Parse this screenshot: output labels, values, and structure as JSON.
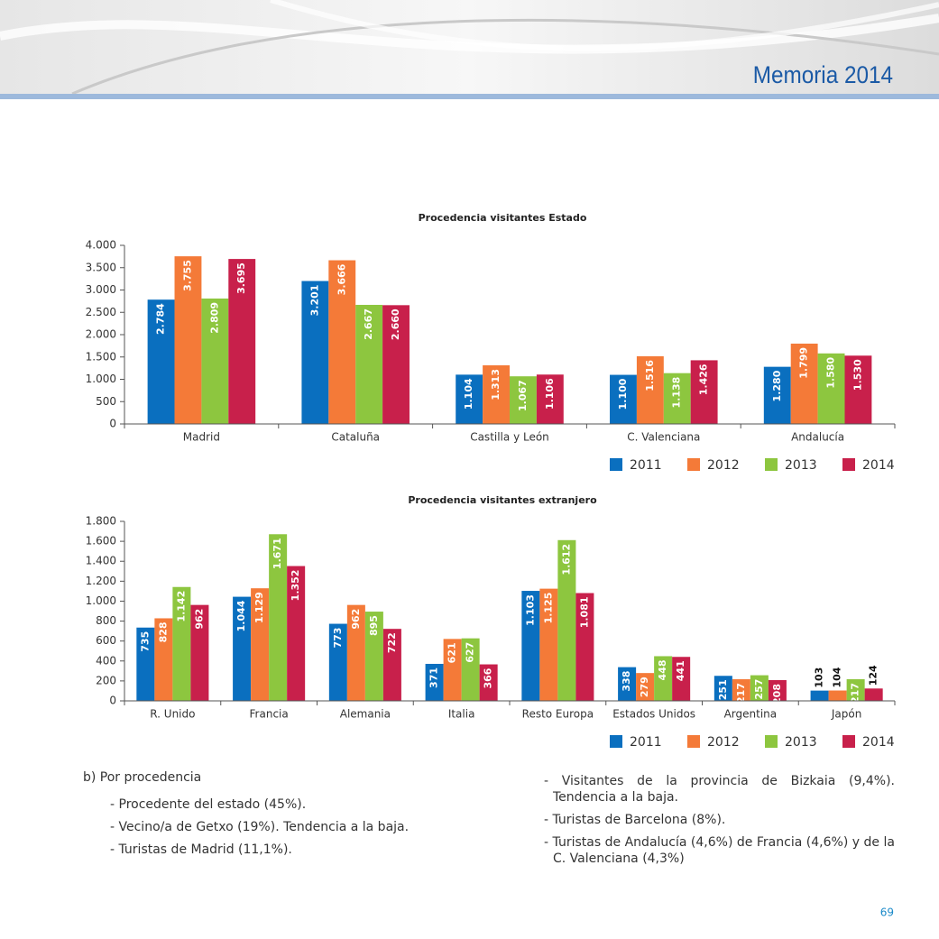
{
  "header": {
    "title": "Memoria 2014"
  },
  "chart_data": [
    {
      "type": "bar",
      "title": "Procedencia visitantes Estado",
      "categories": [
        "Madrid",
        "Cataluña",
        "Castilla y León",
        "C. Valenciana",
        "Andalucía"
      ],
      "series": [
        {
          "name": "2011",
          "color": "#0a6fbf",
          "values": [
            2784,
            3201,
            1104,
            1100,
            1280
          ],
          "value_labels": [
            "2.784",
            "3.201",
            "1.104",
            "1.100",
            "1.280"
          ]
        },
        {
          "name": "2012",
          "color": "#f47a38",
          "values": [
            3755,
            3666,
            1313,
            1516,
            1799
          ],
          "value_labels": [
            "3.755",
            "3.666",
            "1.313",
            "1.516",
            "1.799"
          ]
        },
        {
          "name": "2013",
          "color": "#8dc63f",
          "values": [
            2809,
            2667,
            1067,
            1138,
            1580
          ],
          "value_labels": [
            "2.809",
            "2.667",
            "1.067",
            "1.138",
            "1.580"
          ]
        },
        {
          "name": "2014",
          "color": "#c8204b",
          "values": [
            3695,
            2660,
            1106,
            1426,
            1530
          ],
          "value_labels": [
            "3.695",
            "2.660",
            "1.106",
            "1.426",
            "1.530"
          ]
        }
      ],
      "ylim": [
        0,
        4000
      ],
      "yticks": [
        0,
        500,
        {
          "value": 1000,
          "label": "1.000"
        },
        {
          "value": 1500,
          "label": "1.500"
        },
        {
          "value": 2000,
          "label": "2.000"
        },
        {
          "value": 2500,
          "label": "2.500"
        },
        {
          "value": 3000,
          "label": "3.000"
        },
        {
          "value": 3500,
          "label": "3.500"
        },
        {
          "value": 4000,
          "label": "4.000"
        }
      ],
      "legend": "bottom-right"
    },
    {
      "type": "bar",
      "title": "Procedencia visitantes extranjero",
      "categories": [
        "R. Unido",
        "Francia",
        "Alemania",
        "Italia",
        "Resto Europa",
        "Estados Unidos",
        "Argentina",
        "Japón"
      ],
      "series": [
        {
          "name": "2011",
          "color": "#0a6fbf",
          "values": [
            735,
            1044,
            773,
            371,
            1103,
            338,
            251,
            103
          ],
          "value_labels": [
            "735",
            "1.044",
            "773",
            "371",
            "1.103",
            "338",
            "251",
            "103"
          ]
        },
        {
          "name": "2012",
          "color": "#f47a38",
          "values": [
            828,
            1129,
            962,
            621,
            1125,
            279,
            217,
            104
          ],
          "value_labels": [
            "828",
            "1.129",
            "962",
            "621",
            "1.125",
            "279",
            "217",
            "104"
          ]
        },
        {
          "name": "2013",
          "color": "#8dc63f",
          "values": [
            1142,
            1671,
            895,
            627,
            1612,
            448,
            257,
            217
          ],
          "value_labels": [
            "1.142",
            "1.671",
            "895",
            "627",
            "1.612",
            "448",
            "257",
            "217"
          ]
        },
        {
          "name": "2014",
          "color": "#c8204b",
          "values": [
            962,
            1352,
            722,
            366,
            1081,
            441,
            208,
            124
          ],
          "value_labels": [
            "962",
            "1.352",
            "722",
            "366",
            "1.081",
            "441",
            "208",
            "124"
          ]
        }
      ],
      "ylim": [
        0,
        1800
      ],
      "yticks": [
        0,
        200,
        400,
        600,
        800,
        {
          "value": 1000,
          "label": "1.000"
        },
        {
          "value": 1200,
          "label": "1.200"
        },
        {
          "value": 1400,
          "label": "1.400"
        },
        {
          "value": 1600,
          "label": "1.600"
        },
        {
          "value": 1800,
          "label": "1.800"
        }
      ],
      "legend": "bottom-right"
    }
  ],
  "text": {
    "left": {
      "heading": "b) Por procedencia",
      "items": [
        "- Procedente del estado (45%).",
        "- Vecino/a de Getxo (19%). Tendencia a la baja.",
        "- Turistas de Madrid (11,1%)."
      ]
    },
    "right": {
      "items": [
        "- Visitantes de la provincia de Bizkaia (9,4%). Tendencia a la baja.",
        "-  Turistas de Barcelona (8%).",
        "- Turistas de Andalucía (4,6%) de Francia (4,6%) y de la C. Valenciana (4,3%)"
      ]
    }
  },
  "page_number": "69"
}
